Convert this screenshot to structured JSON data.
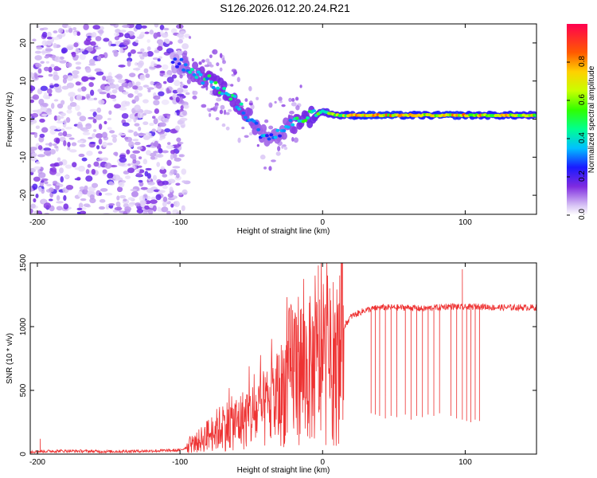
{
  "title": "S126.2026.012.20.24.R21",
  "chart_data": [
    {
      "type": "heatmap",
      "xlabel": "Height of straight line (km)",
      "ylabel": "Frequency (Hz)",
      "xlim": [
        -205,
        150
      ],
      "ylim": [
        -25,
        25
      ],
      "x_ticks": [
        -200,
        -100,
        0,
        100
      ],
      "y_ticks": [
        -20,
        -10,
        0,
        10,
        20
      ],
      "colorbar": {
        "label": "Normalized spectral amplitude",
        "range": [
          0,
          1
        ],
        "ticks": [
          "0.0",
          "0.2",
          "0.4",
          "0.6",
          "0.8"
        ]
      },
      "ridge": {
        "x": [
          -105,
          -95,
          -85,
          -75,
          -65,
          -55,
          -45,
          -35,
          -25,
          -15,
          -5,
          0,
          10,
          30,
          50,
          70,
          90,
          110,
          130,
          150
        ],
        "freq": [
          15,
          14,
          11,
          9,
          6,
          2,
          -3,
          -5,
          -2,
          0,
          1,
          2,
          1,
          1,
          1,
          1,
          1,
          1,
          1,
          1
        ],
        "amplitude": [
          0.2,
          0.35,
          0.4,
          0.45,
          0.45,
          0.4,
          0.35,
          0.3,
          0.35,
          0.45,
          0.5,
          0.55,
          0.6,
          0.75,
          0.75,
          0.7,
          0.75,
          0.7,
          0.7,
          0.65
        ]
      },
      "noise_region": {
        "x_range": [
          -205,
          -95
        ],
        "note": "broadband low-amplitude noise"
      }
    },
    {
      "type": "line",
      "xlabel": "Height of straight line (km)",
      "ylabel": "SNR (10 * v/v)",
      "xlim": [
        -205,
        150
      ],
      "ylim": [
        0,
        1500
      ],
      "x_ticks": [
        -200,
        -100,
        0,
        100
      ],
      "y_ticks": [
        0,
        500,
        1000,
        1500
      ],
      "color": "#ee3333",
      "series": [
        {
          "name": "SNR",
          "x": [
            -205,
            -180,
            -150,
            -120,
            -100,
            -90,
            -80,
            -70,
            -60,
            -50,
            -40,
            -30,
            -20,
            -10,
            0,
            10,
            15,
            20,
            30,
            40,
            50,
            60,
            70,
            80,
            90,
            100,
            110,
            120,
            130,
            150
          ],
          "y": [
            20,
            25,
            20,
            25,
            30,
            80,
            150,
            220,
            250,
            300,
            350,
            450,
            700,
            650,
            700,
            600,
            1000,
            1080,
            1130,
            1150,
            1150,
            1150,
            1140,
            1150,
            1160,
            1150,
            1160,
            1150,
            1150,
            1150
          ]
        }
      ],
      "dropouts": {
        "x": [
          34,
          37,
          40,
          44,
          48,
          52,
          58,
          62,
          66,
          70,
          74,
          78,
          82,
          90,
          94,
          98,
          101,
          104,
          107,
          110
        ],
        "y": [
          320,
          310,
          300,
          280,
          300,
          290,
          310,
          270,
          300,
          290,
          310,
          300,
          320,
          300,
          280,
          270,
          260,
          250,
          270,
          260
        ]
      },
      "spikes": {
        "x": [
          -198,
          -22,
          -3,
          5,
          98
        ],
        "y": [
          120,
          1150,
          1480,
          1300,
          1450
        ]
      }
    }
  ]
}
